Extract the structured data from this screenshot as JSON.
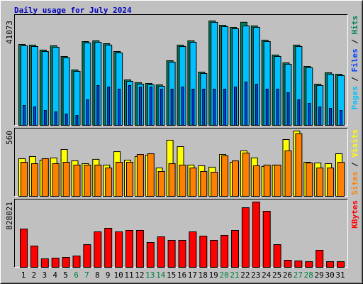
{
  "chart_data": [
    {
      "type": "bar",
      "title": "Daily usage for July 2024",
      "title_color": "#0000c0",
      "ylim": [
        0,
        41073
      ],
      "yticks": [
        41073
      ],
      "legend_separator": " / ",
      "series": [
        {
          "name": "Hits",
          "color": "#00805c",
          "values": [
            31852,
            31573,
            29617,
            31293,
            27102,
            21794,
            32970,
            33249,
            32132,
            29058,
            17882,
            16764,
            16485,
            15926,
            25426,
            31573,
            33249,
            20955,
            41073,
            39397,
            38558,
            40560,
            39116,
            33528,
            27661,
            24588,
            31573,
            23190,
            16205,
            20676,
            20117
          ]
        },
        {
          "name": "Files",
          "color": "#0040ff",
          "values": [
            7823,
            7264,
            5867,
            5308,
            4470,
            3911,
            10058,
            15646,
            15087,
            14249,
            15646,
            15087,
            15087,
            14249,
            14249,
            15087,
            14249,
            14249,
            14249,
            14249,
            15087,
            17043,
            16205,
            14249,
            14249,
            12852,
            10058,
            8661,
            7264,
            6705,
            5867
          ]
        },
        {
          "name": "Pages",
          "color": "#00c0ff",
          "values": [
            31293,
            31014,
            29058,
            30734,
            26543,
            21235,
            32411,
            32690,
            31573,
            28499,
            17323,
            16205,
            15926,
            15367,
            24867,
            31014,
            32690,
            20396,
            40514,
            38838,
            37999,
            39116,
            38558,
            32970,
            27102,
            24029,
            31014,
            22631,
            15646,
            20117,
            19558
          ]
        }
      ]
    },
    {
      "type": "bar",
      "ylim": [
        0,
        560
      ],
      "yticks": [
        560
      ],
      "legend_separator": " / ",
      "series": [
        {
          "name": "Visits",
          "color": "#ffff00",
          "values": [
            323,
            341,
            310,
            329,
            402,
            304,
            280,
            317,
            268,
            383,
            310,
            341,
            353,
            243,
            481,
            426,
            268,
            262,
            250,
            359,
            292,
            390,
            329,
            256,
            268,
            487,
            560,
            292,
            286,
            280,
            365
          ]
        },
        {
          "name": "Sites",
          "color": "#ff8000",
          "values": [
            292,
            280,
            323,
            280,
            292,
            268,
            268,
            268,
            243,
            292,
            292,
            359,
            365,
            213,
            280,
            268,
            243,
            213,
            207,
            347,
            304,
            371,
            262,
            268,
            268,
            390,
            536,
            286,
            243,
            243,
            292
          ]
        }
      ]
    },
    {
      "type": "bar",
      "ylim": [
        0,
        828021
      ],
      "yticks": [
        828021
      ],
      "categories": [
        "1",
        "2",
        "3",
        "4",
        "5",
        "6",
        "7",
        "8",
        "9",
        "10",
        "11",
        "12",
        "13",
        "14",
        "15",
        "16",
        "17",
        "18",
        "19",
        "20",
        "21",
        "22",
        "23",
        "24",
        "25",
        "26",
        "27",
        "28",
        "29",
        "30",
        "31"
      ],
      "category_colors": [
        "#000000",
        "#000000",
        "#000000",
        "#000000",
        "#000000",
        "#008040",
        "#008040",
        "#000000",
        "#000000",
        "#000000",
        "#000000",
        "#000000",
        "#008040",
        "#008040",
        "#000000",
        "#000000",
        "#000000",
        "#000000",
        "#000000",
        "#008040",
        "#008040",
        "#000000",
        "#000000",
        "#000000",
        "#000000",
        "#000000",
        "#008040",
        "#008040",
        "#000000",
        "#000000",
        "#000000"
      ],
      "series": [
        {
          "name": "KBytes",
          "color": "#ff0000",
          "values": [
            486000,
            270000,
            108000,
            117000,
            126000,
            144000,
            288000,
            450000,
            495000,
            450000,
            468000,
            468000,
            315000,
            387000,
            342000,
            342000,
            450000,
            396000,
            342000,
            405000,
            468000,
            756000,
            828021,
            711000,
            288000,
            90000,
            81000,
            72000,
            216000,
            72000,
            72000
          ]
        }
      ]
    }
  ]
}
